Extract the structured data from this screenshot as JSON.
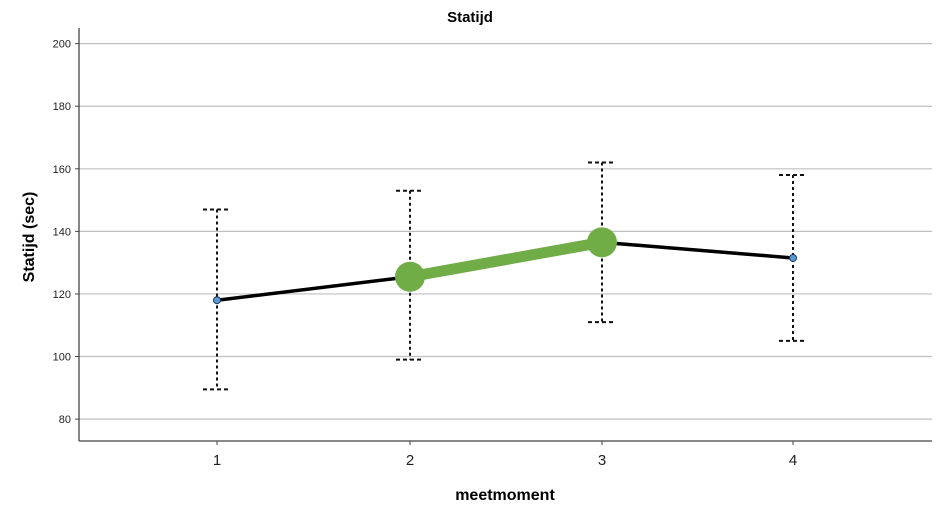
{
  "chart_data": {
    "type": "line",
    "title": "Statijd",
    "xlabel": "meetmoment",
    "ylabel": "Statijd (sec)",
    "categories": [
      "1",
      "2",
      "3",
      "4"
    ],
    "ylim": [
      73,
      205
    ],
    "yticks": [
      80,
      100,
      120,
      140,
      160,
      180,
      200
    ],
    "grid": true,
    "values": [
      118,
      125.5,
      136.5,
      131.5
    ],
    "error_bars": [
      {
        "low": 89.5,
        "high": 147
      },
      {
        "low": 99,
        "high": 153
      },
      {
        "low": 111,
        "high": 162
      },
      {
        "low": 105,
        "high": 158
      }
    ],
    "highlight": {
      "from": "2",
      "to": "3",
      "color": "#70ad47"
    },
    "colors": {
      "line": "#000000",
      "marker": "#5b9bd5",
      "highlight": "#70ad47",
      "grid": "#bfbfbf"
    }
  }
}
